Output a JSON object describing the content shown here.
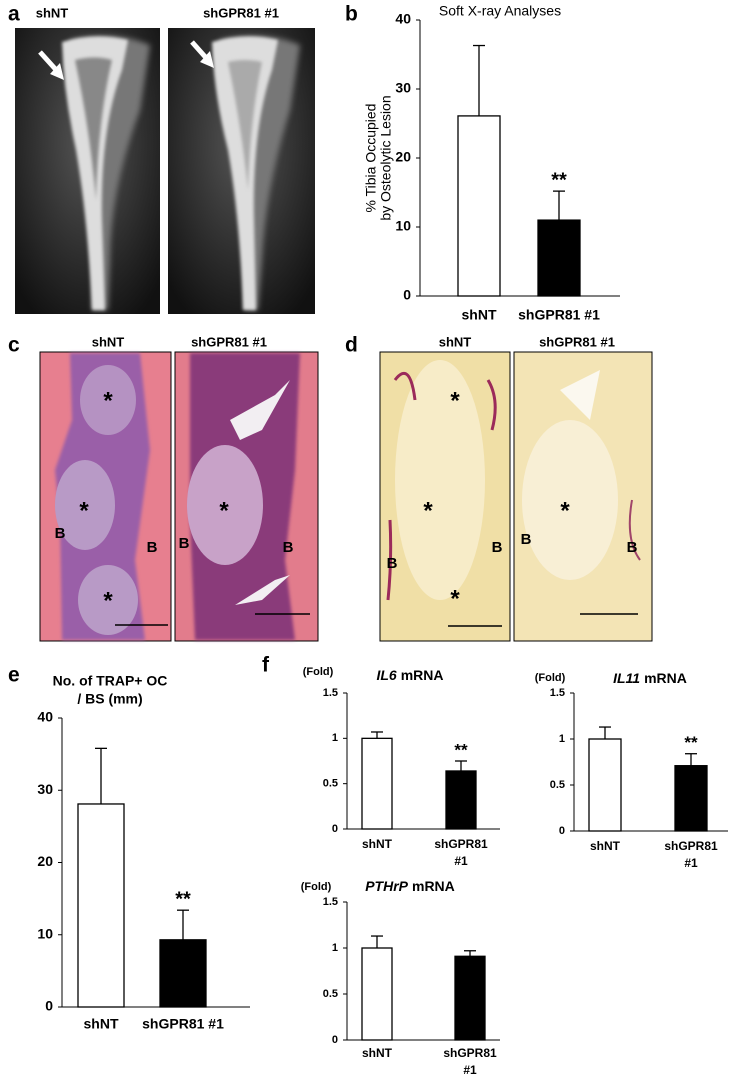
{
  "image_panels": [
    {
      "panel": "a",
      "labels": [
        "shNT",
        "shGPR81 #1"
      ]
    },
    {
      "panel": "c",
      "labels": [
        "shNT",
        "shGPR81 #1"
      ],
      "asterisk": "*",
      "bone": "B"
    },
    {
      "panel": "d",
      "labels": [
        "shNT",
        "shGPR81 #1"
      ],
      "asterisk": "*",
      "bone": "B"
    }
  ],
  "chart_data": [
    {
      "type": "bar",
      "panel": "b",
      "title": "Soft X-ray Analyses",
      "ylabel": [
        "% Tibia Occupied",
        "by Osteolytic Lesion"
      ],
      "categories": [
        "shNT",
        "shGPR81 #1"
      ],
      "values": [
        26.1,
        11.0
      ],
      "errors": [
        10.2,
        4.2
      ],
      "colors": [
        "#ffffff",
        "#000000"
      ],
      "ylim": [
        0,
        40
      ],
      "yticks": [
        0,
        10,
        20,
        30,
        40
      ],
      "annotations": [
        {
          "text": "**",
          "category": "shGPR81 #1"
        }
      ]
    },
    {
      "type": "bar",
      "panel": "e",
      "title": [
        "No. of TRAP+ OC",
        "/ BS (mm)"
      ],
      "categories": [
        "shNT",
        "shGPR81 #1"
      ],
      "values": [
        28.1,
        9.3
      ],
      "errors": [
        7.7,
        4.1
      ],
      "colors": [
        "#ffffff",
        "#000000"
      ],
      "ylim": [
        0,
        40
      ],
      "yticks": [
        0,
        10,
        20,
        30,
        40
      ],
      "annotations": [
        {
          "text": "**",
          "category": "shGPR81 #1"
        }
      ]
    },
    {
      "type": "bar",
      "panel": "f",
      "title": {
        "gene": "IL6",
        "text": "mRNA"
      },
      "ylabel": "(Fold)",
      "categories": [
        "shNT",
        [
          "shGPR81",
          "#1"
        ]
      ],
      "values": [
        1.0,
        0.64
      ],
      "errors": [
        0.07,
        0.11
      ],
      "colors": [
        "#ffffff",
        "#000000"
      ],
      "ylim": [
        0,
        1.5
      ],
      "yticks": [
        0,
        0.5,
        1,
        1.5
      ],
      "annotations": [
        {
          "text": "**",
          "category": "shGPR81 #1"
        }
      ]
    },
    {
      "type": "bar",
      "title": {
        "gene": "IL11",
        "text": "mRNA"
      },
      "ylabel": "(Fold)",
      "categories": [
        "shNT",
        [
          "shGPR81",
          "#1"
        ]
      ],
      "values": [
        1.0,
        0.71
      ],
      "errors": [
        0.13,
        0.13
      ],
      "colors": [
        "#ffffff",
        "#000000"
      ],
      "ylim": [
        0,
        1.5
      ],
      "yticks": [
        0,
        0.5,
        1,
        1.5
      ],
      "annotations": [
        {
          "text": "**",
          "category": "shGPR81 #1"
        }
      ]
    },
    {
      "type": "bar",
      "title": {
        "gene": "PTHrP",
        "text": "mRNA"
      },
      "ylabel": "(Fold)",
      "categories": [
        "shNT",
        [
          "shGPR81",
          "#1"
        ]
      ],
      "values": [
        1.0,
        0.91
      ],
      "errors": [
        0.13,
        0.06
      ],
      "colors": [
        "#ffffff",
        "#000000"
      ],
      "ylim": [
        0,
        1.5
      ],
      "yticks": [
        0,
        0.5,
        1,
        1.5
      ]
    }
  ]
}
